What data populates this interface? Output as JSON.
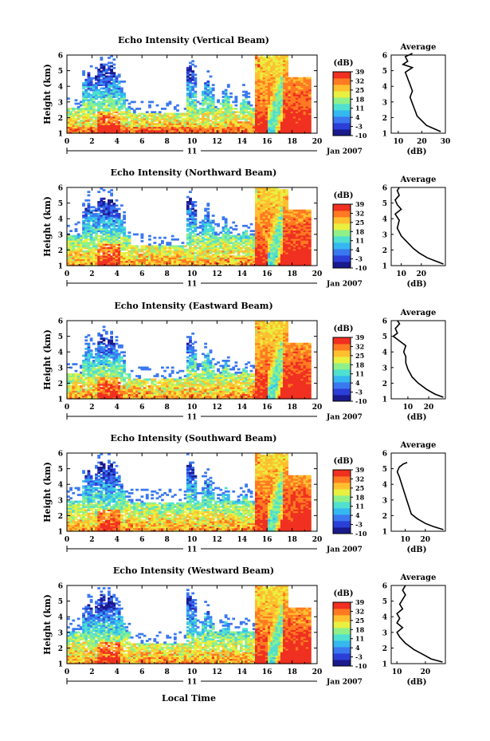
{
  "figure": {
    "xlabel": "Local Time",
    "date_label": "Jan 2007",
    "day_label": "11",
    "ylabel": "Height (km)",
    "cbar_unit": "(dB)",
    "avg_title": "Average",
    "avg_xlabel": "(dB)"
  },
  "colormap": {
    "levels": [
      -10,
      -3,
      4,
      11,
      18,
      25,
      32,
      39
    ],
    "level_labels": [
      "-10",
      "-3",
      "4",
      "11",
      "18",
      "25",
      "32",
      "39"
    ],
    "colors": [
      "#1a1a8c",
      "#2b3fd6",
      "#3a78f0",
      "#35b8f0",
      "#4fe0d0",
      "#8ff08a",
      "#e8f040",
      "#ffc030",
      "#ff7a22",
      "#f03020"
    ]
  },
  "chart_data": [
    {
      "type": "heatmap",
      "title": "Echo Intensity (Vertical Beam)",
      "xlabel": "Local Time",
      "ylabel": "Height (km)",
      "xlim": [
        0,
        20
      ],
      "ylim": [
        1,
        6
      ],
      "xticks": [
        0,
        2,
        4,
        6,
        8,
        10,
        12,
        14,
        16,
        18,
        20
      ],
      "yticks": [
        1,
        2,
        3,
        4,
        5,
        6
      ],
      "colorbar": {
        "label": "(dB)",
        "ticks": [
          -10,
          -3,
          4,
          11,
          18,
          25,
          32,
          39
        ]
      },
      "profile": {
        "title": "Average",
        "xlabel": "(dB)",
        "xlim": [
          7,
          30
        ],
        "xticks": [
          10,
          20,
          30
        ],
        "ylim": [
          1,
          6
        ],
        "yticks": [
          1,
          2,
          3,
          4,
          5,
          6
        ],
        "points": [
          [
            28,
            1.1
          ],
          [
            25,
            1.3
          ],
          [
            22,
            1.5
          ],
          [
            20,
            1.8
          ],
          [
            18,
            2.1
          ],
          [
            17,
            2.5
          ],
          [
            16,
            2.9
          ],
          [
            15,
            3.3
          ],
          [
            16,
            3.7
          ],
          [
            15,
            4.1
          ],
          [
            14,
            4.5
          ],
          [
            13,
            4.9
          ],
          [
            16,
            5.2
          ],
          [
            12,
            5.4
          ],
          [
            14,
            5.6
          ],
          [
            13,
            5.9
          ],
          [
            16,
            6.1
          ]
        ]
      }
    },
    {
      "type": "heatmap",
      "title": "Echo Intensity (Northward Beam)",
      "xlabel": "Local Time",
      "ylabel": "Height (km)",
      "xlim": [
        0,
        20
      ],
      "ylim": [
        1,
        6
      ],
      "xticks": [
        0,
        2,
        4,
        6,
        8,
        10,
        12,
        14,
        16,
        18,
        20
      ],
      "yticks": [
        1,
        2,
        3,
        4,
        5,
        6
      ],
      "colorbar": {
        "label": "(dB)",
        "ticks": [
          -10,
          -3,
          4,
          11,
          18,
          25,
          32,
          39
        ]
      },
      "profile": {
        "title": "Average",
        "xlabel": "(dB)",
        "xlim": [
          5,
          32
        ],
        "xticks": [
          10,
          20
        ],
        "ylim": [
          1,
          6
        ],
        "yticks": [
          1,
          2,
          3,
          4,
          5,
          6
        ],
        "points": [
          [
            31,
            1.1
          ],
          [
            27,
            1.3
          ],
          [
            23,
            1.5
          ],
          [
            19,
            1.8
          ],
          [
            16,
            2.1
          ],
          [
            13,
            2.5
          ],
          [
            10,
            2.9
          ],
          [
            8,
            3.4
          ],
          [
            9,
            3.9
          ],
          [
            7,
            4.3
          ],
          [
            10,
            4.6
          ],
          [
            8,
            4.9
          ],
          [
            7,
            5.2
          ],
          [
            9,
            5.5
          ],
          [
            8,
            5.8
          ],
          [
            9,
            6.0
          ]
        ]
      }
    },
    {
      "type": "heatmap",
      "title": "Echo Intensity (Eastward Beam)",
      "xlabel": "Local Time",
      "ylabel": "Height (km)",
      "xlim": [
        0,
        20
      ],
      "ylim": [
        1,
        6
      ],
      "xticks": [
        0,
        2,
        4,
        6,
        8,
        10,
        12,
        14,
        16,
        18,
        20
      ],
      "yticks": [
        1,
        2,
        3,
        4,
        5,
        6
      ],
      "colorbar": {
        "label": "(dB)",
        "ticks": [
          -10,
          -3,
          4,
          11,
          18,
          25,
          32,
          39
        ]
      },
      "profile": {
        "title": "Average",
        "xlabel": "(dB)",
        "xlim": [
          2,
          28
        ],
        "xticks": [
          10,
          20
        ],
        "ylim": [
          1,
          6
        ],
        "yticks": [
          1,
          2,
          3,
          4,
          5,
          6
        ],
        "points": [
          [
            27,
            1.1
          ],
          [
            23,
            1.3
          ],
          [
            19,
            1.6
          ],
          [
            15,
            2.0
          ],
          [
            12,
            2.4
          ],
          [
            10,
            2.9
          ],
          [
            9,
            3.3
          ],
          [
            9,
            3.7
          ],
          [
            8,
            4.0
          ],
          [
            9,
            4.4
          ],
          [
            6,
            4.7
          ],
          [
            3,
            5.0
          ],
          [
            5,
            5.2
          ],
          [
            4,
            5.5
          ],
          [
            6,
            5.8
          ],
          [
            5,
            6.0
          ]
        ]
      }
    },
    {
      "type": "heatmap",
      "title": "Echo Intensity (Southward Beam)",
      "xlabel": "Local Time",
      "ylabel": "Height (km)",
      "xlim": [
        0,
        20
      ],
      "ylim": [
        1,
        6
      ],
      "xticks": [
        0,
        2,
        4,
        6,
        8,
        10,
        12,
        14,
        16,
        18,
        20
      ],
      "yticks": [
        1,
        2,
        3,
        4,
        5,
        6
      ],
      "colorbar": {
        "label": "(dB)",
        "ticks": [
          -10,
          -3,
          4,
          11,
          18,
          25,
          32,
          39
        ]
      },
      "profile": {
        "title": "Average",
        "xlabel": "(dB)",
        "xlim": [
          3,
          30
        ],
        "xticks": [
          10,
          20
        ],
        "ylim": [
          1,
          6
        ],
        "yticks": [
          1,
          2,
          3,
          4,
          5,
          6
        ],
        "points": [
          [
            29,
            1.1
          ],
          [
            24,
            1.3
          ],
          [
            20,
            1.5
          ],
          [
            16,
            1.8
          ],
          [
            13,
            2.1
          ],
          [
            12,
            2.5
          ],
          [
            11,
            2.9
          ],
          [
            10,
            3.3
          ],
          [
            9,
            3.7
          ],
          [
            8,
            4.1
          ],
          [
            7,
            4.5
          ],
          [
            6,
            4.8
          ],
          [
            7,
            5.1
          ],
          [
            9,
            5.3
          ],
          [
            11,
            5.4
          ]
        ]
      }
    },
    {
      "type": "heatmap",
      "title": "Echo Intensity (Westward Beam)",
      "xlabel": "Local Time",
      "ylabel": "Height (km)",
      "xlim": [
        0,
        20
      ],
      "ylim": [
        1,
        6
      ],
      "xticks": [
        0,
        2,
        4,
        6,
        8,
        10,
        12,
        14,
        16,
        18,
        20
      ],
      "yticks": [
        1,
        2,
        3,
        4,
        5,
        6
      ],
      "colorbar": {
        "label": "(dB)",
        "ticks": [
          -10,
          -3,
          4,
          11,
          18,
          25,
          32,
          39
        ]
      },
      "profile": {
        "title": "Average",
        "xlabel": "(dB)",
        "xlim": [
          8,
          27
        ],
        "xticks": [
          10,
          20
        ],
        "ylim": [
          1,
          6
        ],
        "yticks": [
          1,
          2,
          3,
          4,
          5,
          6
        ],
        "points": [
          [
            26,
            1.1
          ],
          [
            22,
            1.3
          ],
          [
            19,
            1.6
          ],
          [
            16,
            1.9
          ],
          [
            13,
            2.3
          ],
          [
            11,
            2.7
          ],
          [
            10,
            3.0
          ],
          [
            12,
            3.3
          ],
          [
            10,
            3.6
          ],
          [
            11,
            3.9
          ],
          [
            10,
            4.2
          ],
          [
            12,
            4.5
          ],
          [
            11,
            4.8
          ],
          [
            12,
            5.1
          ],
          [
            13,
            5.4
          ],
          [
            12,
            5.7
          ],
          [
            13,
            6.0
          ]
        ]
      }
    }
  ]
}
